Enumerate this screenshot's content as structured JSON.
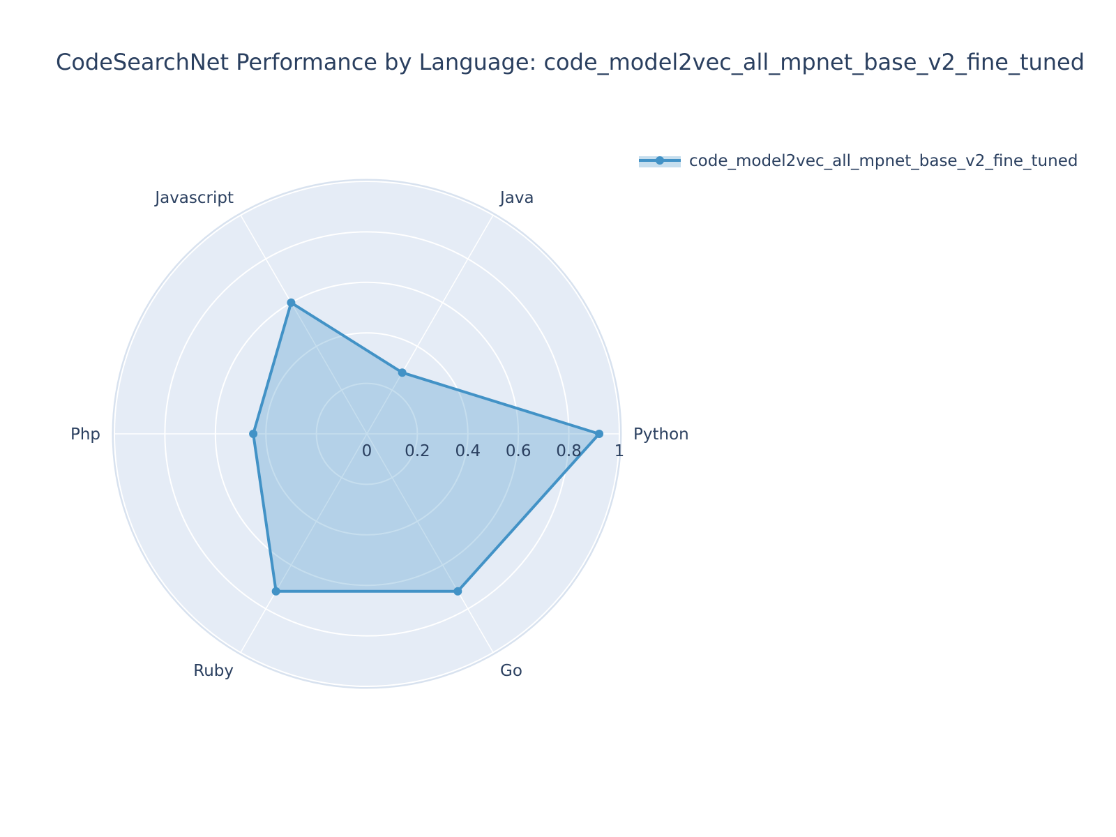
{
  "chart_data": {
    "type": "radar",
    "title": "CodeSearchNet Performance by Language: code_model2vec_all_mpnet_base_v2_fine_tuned",
    "categories": [
      "Python",
      "Java",
      "Javascript",
      "Php",
      "Ruby",
      "Go"
    ],
    "series": [
      {
        "name": "code_model2vec_all_mpnet_base_v2_fine_tuned",
        "values": [
          0.92,
          0.28,
          0.6,
          0.45,
          0.72,
          0.72
        ],
        "color": "#4292c6",
        "fill_color": "rgba(66,146,198,0.3)"
      }
    ],
    "radial_ticks": [
      "0",
      "0.2",
      "0.4",
      "0.6",
      "0.8",
      "1"
    ],
    "radial_tick_values": [
      0,
      0.2,
      0.4,
      0.6,
      0.8,
      1
    ],
    "radial_range": [
      0,
      1
    ],
    "grid": true,
    "legend_position": "top-right",
    "colors": {
      "polar_background": "#e5ecf6",
      "grid": "#ffffff",
      "text": "#2a3f5f"
    }
  }
}
